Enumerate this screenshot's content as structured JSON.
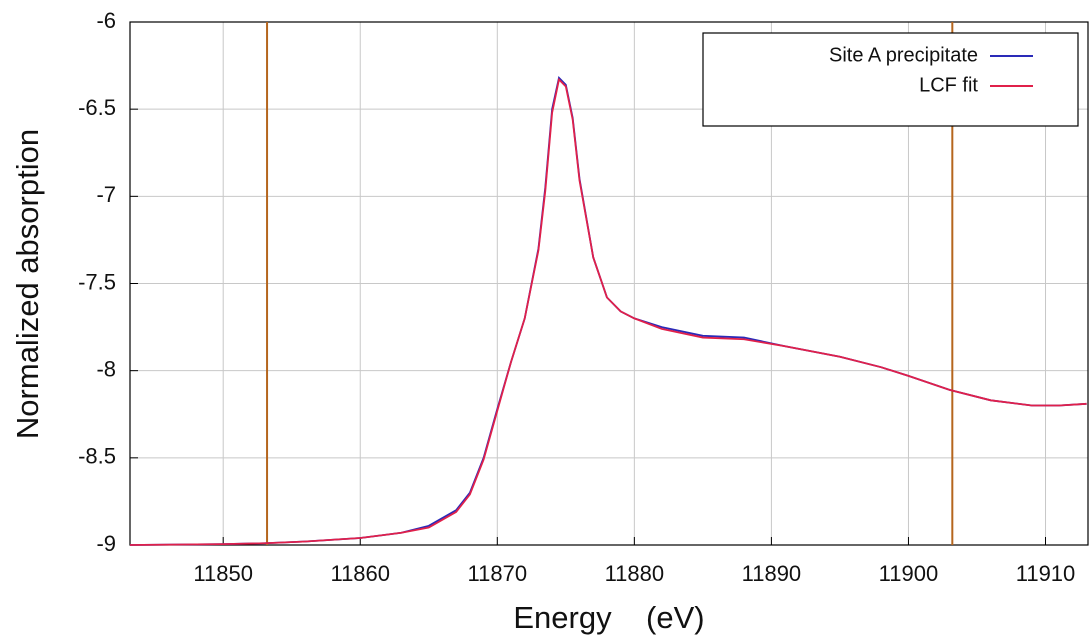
{
  "chart_data": {
    "type": "line",
    "x_label": "Energy    (eV)",
    "y_label": "Normalized absorption",
    "xlim": [
      11843.2,
      11913.1
    ],
    "ylim": [
      -9,
      -6
    ],
    "xticks": [
      11850,
      11860,
      11870,
      11880,
      11890,
      11900,
      11910
    ],
    "yticks": [
      -9,
      -8.5,
      -8,
      -7.5,
      -7,
      -6.5,
      -6
    ],
    "grid": true,
    "legend": "upper right",
    "vlines": [
      11853.2,
      11903.2
    ],
    "vline_color": "#b5651d",
    "x": [
      11843.2,
      11850,
      11853,
      11856,
      11860,
      11863,
      11865,
      11867,
      11868,
      11869,
      11870,
      11871,
      11872,
      11873,
      11873.5,
      11874,
      11874.5,
      11875,
      11875.5,
      11876,
      11877,
      11878,
      11879,
      11880,
      11882,
      11885,
      11888,
      11891,
      11895,
      11898,
      11900,
      11903,
      11906,
      11909,
      11911,
      11913
    ],
    "series": [
      {
        "name": "Site A precipitate",
        "color": "#2a2ab8",
        "values": [
          -9.0,
          -8.995,
          -8.99,
          -8.98,
          -8.96,
          -8.93,
          -8.89,
          -8.8,
          -8.7,
          -8.5,
          -8.22,
          -7.95,
          -7.7,
          -7.3,
          -6.95,
          -6.5,
          -6.32,
          -6.36,
          -6.55,
          -6.9,
          -7.35,
          -7.58,
          -7.66,
          -7.7,
          -7.75,
          -7.8,
          -7.81,
          -7.86,
          -7.92,
          -7.98,
          -8.03,
          -8.11,
          -8.17,
          -8.2,
          -8.2,
          -8.19
        ]
      },
      {
        "name": "LCF fit",
        "color": "#e0204a",
        "values": [
          -9.0,
          -8.995,
          -8.99,
          -8.98,
          -8.96,
          -8.93,
          -8.9,
          -8.81,
          -8.71,
          -8.51,
          -8.23,
          -7.95,
          -7.7,
          -7.31,
          -6.97,
          -6.52,
          -6.33,
          -6.37,
          -6.56,
          -6.91,
          -7.35,
          -7.58,
          -7.66,
          -7.7,
          -7.76,
          -7.81,
          -7.82,
          -7.86,
          -7.92,
          -7.98,
          -8.03,
          -8.11,
          -8.17,
          -8.2,
          -8.2,
          -8.19
        ]
      }
    ]
  }
}
